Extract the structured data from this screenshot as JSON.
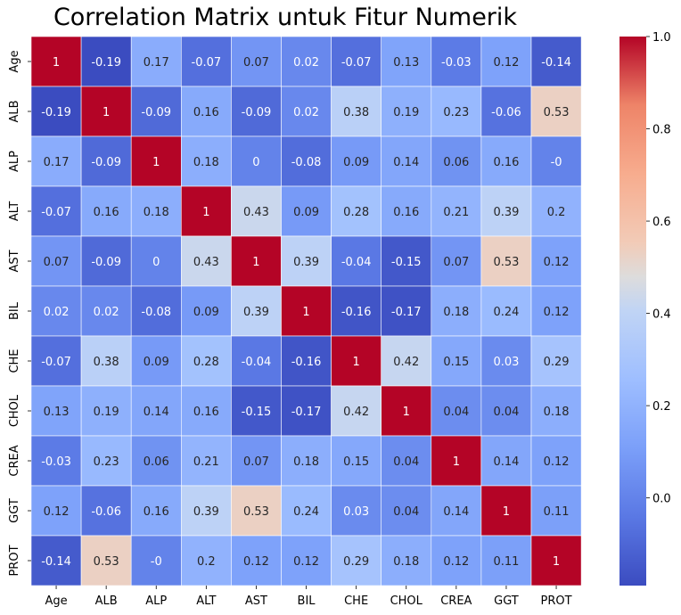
{
  "chart_data": {
    "type": "heatmap",
    "title": "Correlation Matrix untuk Fitur Numerik",
    "xlabel": "",
    "ylabel": "",
    "labels": [
      "Age",
      "ALB",
      "ALP",
      "ALT",
      "AST",
      "BIL",
      "CHE",
      "CHOL",
      "CREA",
      "GGT",
      "PROT"
    ],
    "display": [
      [
        "1",
        "-0.19",
        "0.17",
        "-0.07",
        "0.07",
        "0.02",
        "-0.07",
        "0.13",
        "-0.03",
        "0.12",
        "-0.14"
      ],
      [
        "-0.19",
        "1",
        "-0.09",
        "0.16",
        "-0.09",
        "0.02",
        "0.38",
        "0.19",
        "0.23",
        "-0.06",
        "0.53"
      ],
      [
        "0.17",
        "-0.09",
        "1",
        "0.18",
        "0",
        "-0.08",
        "0.09",
        "0.14",
        "0.06",
        "0.16",
        "-0"
      ],
      [
        "-0.07",
        "0.16",
        "0.18",
        "1",
        "0.43",
        "0.09",
        "0.28",
        "0.16",
        "0.21",
        "0.39",
        "0.2"
      ],
      [
        "0.07",
        "-0.09",
        "0",
        "0.43",
        "1",
        "0.39",
        "-0.04",
        "-0.15",
        "0.07",
        "0.53",
        "0.12"
      ],
      [
        "0.02",
        "0.02",
        "-0.08",
        "0.09",
        "0.39",
        "1",
        "-0.16",
        "-0.17",
        "0.18",
        "0.24",
        "0.12"
      ],
      [
        "-0.07",
        "0.38",
        "0.09",
        "0.28",
        "-0.04",
        "-0.16",
        "1",
        "0.42",
        "0.15",
        "0.03",
        "0.29"
      ],
      [
        "0.13",
        "0.19",
        "0.14",
        "0.16",
        "-0.15",
        "-0.17",
        "0.42",
        "1",
        "0.04",
        "0.04",
        "0.18"
      ],
      [
        "-0.03",
        "0.23",
        "0.06",
        "0.21",
        "0.07",
        "0.18",
        "0.15",
        "0.04",
        "1",
        "0.14",
        "0.12"
      ],
      [
        "0.12",
        "-0.06",
        "0.16",
        "0.39",
        "0.53",
        "0.24",
        "0.03",
        "0.04",
        "0.14",
        "1",
        "0.11"
      ],
      [
        "-0.14",
        "0.53",
        "-0",
        "0.2",
        "0.12",
        "0.12",
        "0.29",
        "0.18",
        "0.12",
        "0.11",
        "1"
      ]
    ],
    "colormap": "coolwarm",
    "vmin": -0.19,
    "vmax": 1.0,
    "colorbar_ticks": [
      "1.0",
      "0.8",
      "0.6",
      "0.4",
      "0.2",
      "0.0"
    ],
    "grid": true,
    "legend": "colorbar-right"
  }
}
